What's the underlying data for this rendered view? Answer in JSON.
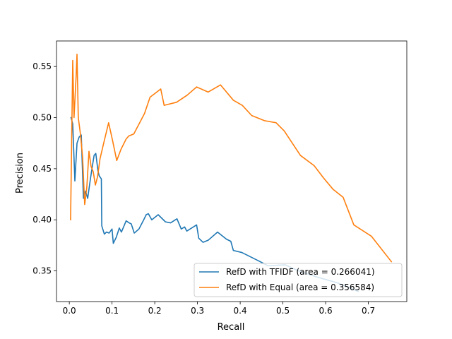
{
  "chart_data": {
    "type": "line",
    "title": "",
    "xlabel": "Recall",
    "ylabel": "Precision",
    "xlim": [
      -0.03,
      0.79
    ],
    "ylim": [
      0.32,
      0.575
    ],
    "xticks": [
      {
        "value": 0.0,
        "label": "0.0"
      },
      {
        "value": 0.1,
        "label": "0.1"
      },
      {
        "value": 0.2,
        "label": "0.2"
      },
      {
        "value": 0.3,
        "label": "0.3"
      },
      {
        "value": 0.4,
        "label": "0.4"
      },
      {
        "value": 0.5,
        "label": "0.5"
      },
      {
        "value": 0.6,
        "label": "0.6"
      },
      {
        "value": 0.7,
        "label": "0.7"
      }
    ],
    "yticks": [
      {
        "value": 0.35,
        "label": "0.35"
      },
      {
        "value": 0.4,
        "label": "0.40"
      },
      {
        "value": 0.45,
        "label": "0.45"
      },
      {
        "value": 0.5,
        "label": "0.50"
      },
      {
        "value": 0.55,
        "label": "0.55"
      }
    ],
    "grid": false,
    "legend_position": "lower-right",
    "series": [
      {
        "name": "RefD with TFIDF (area = 0.266041)",
        "color": "#1f77b4",
        "points": [
          [
            0.004,
            0.5
          ],
          [
            0.008,
            0.494
          ],
          [
            0.013,
            0.438
          ],
          [
            0.018,
            0.475
          ],
          [
            0.023,
            0.481
          ],
          [
            0.028,
            0.483
          ],
          [
            0.033,
            0.421
          ],
          [
            0.038,
            0.428
          ],
          [
            0.043,
            0.421
          ],
          [
            0.048,
            0.436
          ],
          [
            0.053,
            0.45
          ],
          [
            0.058,
            0.463
          ],
          [
            0.062,
            0.465
          ],
          [
            0.067,
            0.448
          ],
          [
            0.07,
            0.443
          ],
          [
            0.075,
            0.44
          ],
          [
            0.076,
            0.394
          ],
          [
            0.082,
            0.386
          ],
          [
            0.087,
            0.388
          ],
          [
            0.093,
            0.387
          ],
          [
            0.1,
            0.391
          ],
          [
            0.103,
            0.377
          ],
          [
            0.11,
            0.383
          ],
          [
            0.117,
            0.392
          ],
          [
            0.122,
            0.388
          ],
          [
            0.133,
            0.399
          ],
          [
            0.14,
            0.397
          ],
          [
            0.145,
            0.396
          ],
          [
            0.152,
            0.387
          ],
          [
            0.163,
            0.391
          ],
          [
            0.173,
            0.399
          ],
          [
            0.18,
            0.405
          ],
          [
            0.185,
            0.406
          ],
          [
            0.193,
            0.4
          ],
          [
            0.208,
            0.405
          ],
          [
            0.225,
            0.398
          ],
          [
            0.237,
            0.397
          ],
          [
            0.252,
            0.401
          ],
          [
            0.262,
            0.391
          ],
          [
            0.27,
            0.393
          ],
          [
            0.275,
            0.389
          ],
          [
            0.298,
            0.395
          ],
          [
            0.303,
            0.382
          ],
          [
            0.313,
            0.378
          ],
          [
            0.325,
            0.38
          ],
          [
            0.347,
            0.388
          ],
          [
            0.368,
            0.381
          ],
          [
            0.378,
            0.379
          ],
          [
            0.384,
            0.37
          ],
          [
            0.404,
            0.368
          ],
          [
            0.428,
            0.363
          ],
          [
            0.447,
            0.359
          ],
          [
            0.465,
            0.355
          ],
          [
            0.505,
            0.356
          ],
          [
            0.537,
            0.35
          ],
          [
            0.58,
            0.344
          ],
          [
            0.63,
            0.338
          ],
          [
            0.676,
            0.33
          ]
        ]
      },
      {
        "name": "RefD with Equal (area = 0.356584)",
        "color": "#ff7f0e",
        "points": [
          [
            0.003,
            0.4
          ],
          [
            0.008,
            0.556
          ],
          [
            0.011,
            0.5
          ],
          [
            0.016,
            0.541
          ],
          [
            0.018,
            0.562
          ],
          [
            0.021,
            0.5
          ],
          [
            0.026,
            0.484
          ],
          [
            0.031,
            0.462
          ],
          [
            0.036,
            0.415
          ],
          [
            0.041,
            0.432
          ],
          [
            0.046,
            0.467
          ],
          [
            0.051,
            0.452
          ],
          [
            0.056,
            0.447
          ],
          [
            0.061,
            0.434
          ],
          [
            0.066,
            0.442
          ],
          [
            0.072,
            0.46
          ],
          [
            0.081,
            0.476
          ],
          [
            0.092,
            0.495
          ],
          [
            0.101,
            0.478
          ],
          [
            0.111,
            0.458
          ],
          [
            0.121,
            0.469
          ],
          [
            0.133,
            0.479
          ],
          [
            0.139,
            0.482
          ],
          [
            0.151,
            0.484
          ],
          [
            0.176,
            0.504
          ],
          [
            0.189,
            0.52
          ],
          [
            0.214,
            0.528
          ],
          [
            0.222,
            0.512
          ],
          [
            0.251,
            0.515
          ],
          [
            0.276,
            0.522
          ],
          [
            0.298,
            0.53
          ],
          [
            0.325,
            0.525
          ],
          [
            0.354,
            0.532
          ],
          [
            0.384,
            0.517
          ],
          [
            0.405,
            0.512
          ],
          [
            0.427,
            0.502
          ],
          [
            0.457,
            0.497
          ],
          [
            0.484,
            0.495
          ],
          [
            0.503,
            0.487
          ],
          [
            0.541,
            0.463
          ],
          [
            0.573,
            0.453
          ],
          [
            0.595,
            0.441
          ],
          [
            0.617,
            0.43
          ],
          [
            0.641,
            0.422
          ],
          [
            0.666,
            0.395
          ],
          [
            0.707,
            0.384
          ],
          [
            0.754,
            0.359
          ]
        ]
      }
    ]
  }
}
